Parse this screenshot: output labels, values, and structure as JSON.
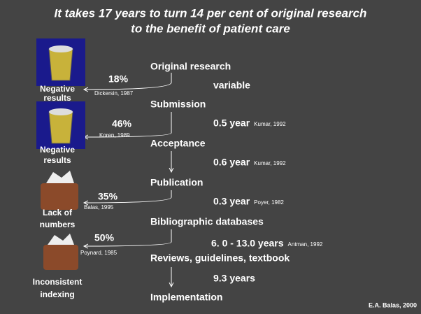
{
  "title": {
    "line1": "It takes 17 years to turn 14 per cent of original research",
    "line2": "to the benefit of patient care"
  },
  "stages": [
    "Original research",
    "Submission",
    "Acceptance",
    "Publication",
    "Bibliographic databases",
    "Reviews, guidelines, textbook",
    "Implementation"
  ],
  "durations": [
    {
      "time": "variable"
    },
    {
      "time": "0.5 year",
      "source": "Kumar, 1992"
    },
    {
      "time": "0.6 year",
      "source": "Kumar, 1992"
    },
    {
      "time": "0.3 year",
      "source": "Poyer, 1982"
    },
    {
      "time": "6. 0 - 13.0 years",
      "source": "Antman, 1992"
    },
    {
      "time": "9.3 years"
    }
  ],
  "losses": [
    {
      "percent": "18%",
      "source": "Dickersin, 1987",
      "label1": "Negative",
      "label2": "results"
    },
    {
      "percent": "46%",
      "source": "Koren, 1989",
      "label1": "Negative",
      "label2": "results"
    },
    {
      "percent": "35%",
      "source": "Balas, 1995",
      "label1": "Lack of",
      "label2": "numbers"
    },
    {
      "percent": "50%",
      "source": "Poynard, 1985",
      "label1": "Inconsistent",
      "label2": "indexing"
    }
  ],
  "credit": "E.A. Balas, 2000"
}
